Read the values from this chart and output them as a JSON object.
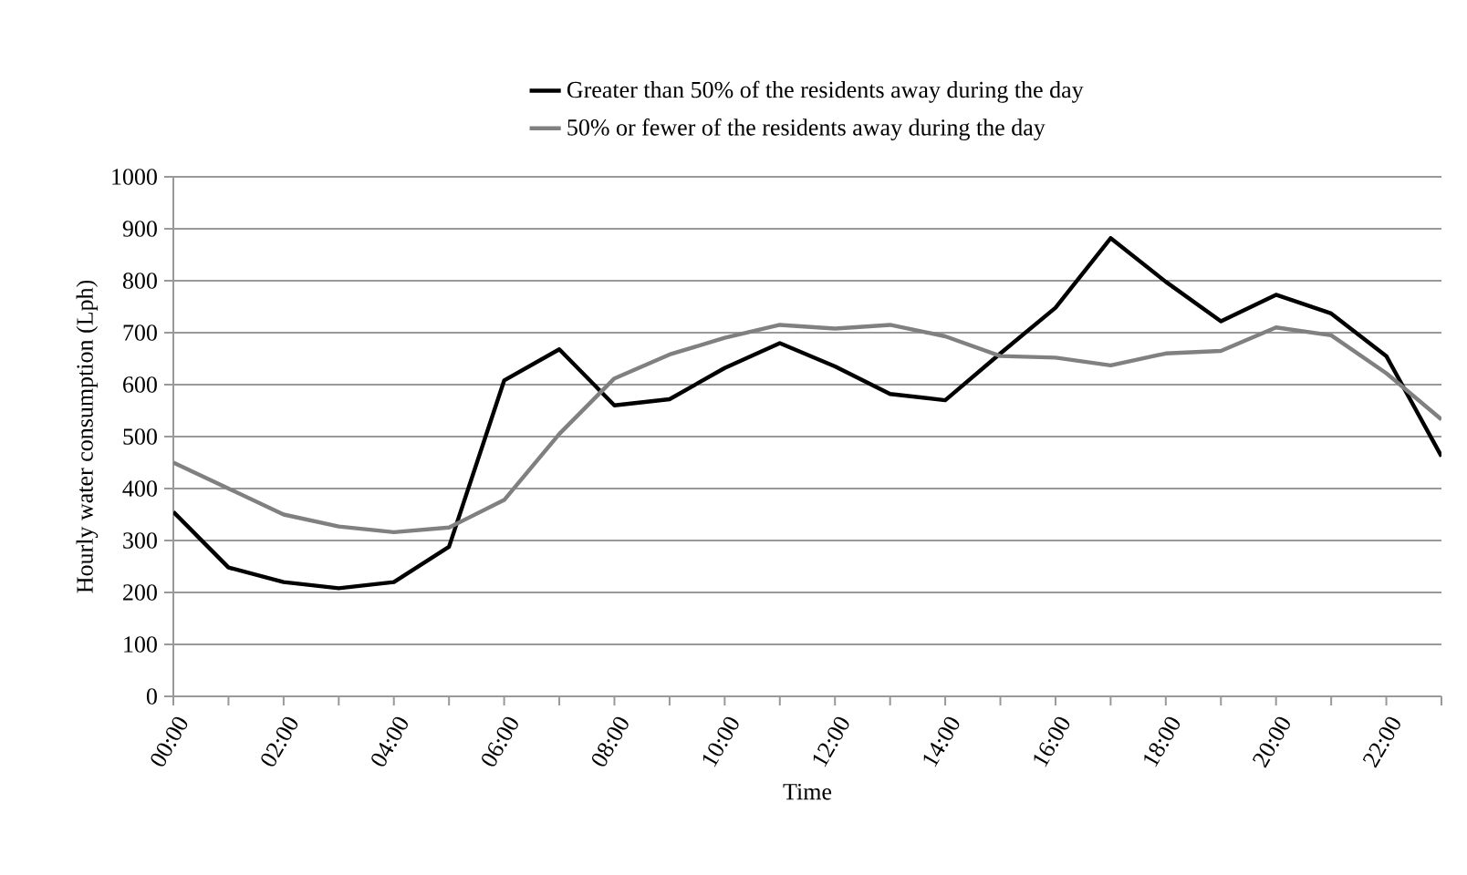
{
  "chart_data": {
    "type": "line",
    "xlabel": "Time",
    "ylabel": "Hourly water consumption (Lph)",
    "categories": [
      "00:00",
      null,
      "02:00",
      null,
      "04:00",
      null,
      "06:00",
      null,
      "08:00",
      null,
      "10:00",
      null,
      "12:00",
      null,
      "14:00",
      null,
      "16:00",
      null,
      "18:00",
      null,
      "20:00",
      null,
      "22:00",
      null
    ],
    "series": [
      {
        "name": "Greater than 50% of the residents away during the day",
        "color": "#000000",
        "values": [
          355,
          248,
          220,
          208,
          220,
          288,
          608,
          668,
          560,
          572,
          632,
          680,
          635,
          582,
          570,
          660,
          748,
          882,
          798,
          722,
          773,
          737,
          655,
          462
        ]
      },
      {
        "name": "50% or fewer of the residents away during the day",
        "color": "#808080",
        "values": [
          450,
          400,
          350,
          327,
          316,
          325,
          378,
          505,
          612,
          658,
          690,
          715,
          708,
          715,
          693,
          655,
          652,
          637,
          660,
          665,
          710,
          695,
          622,
          533
        ]
      }
    ],
    "ylim": [
      0,
      1000
    ],
    "yticks": [
      0,
      100,
      200,
      300,
      400,
      500,
      600,
      700,
      800,
      900,
      1000
    ],
    "grid": "y",
    "legend": "top",
    "marker": "none",
    "line_style": "solid"
  }
}
